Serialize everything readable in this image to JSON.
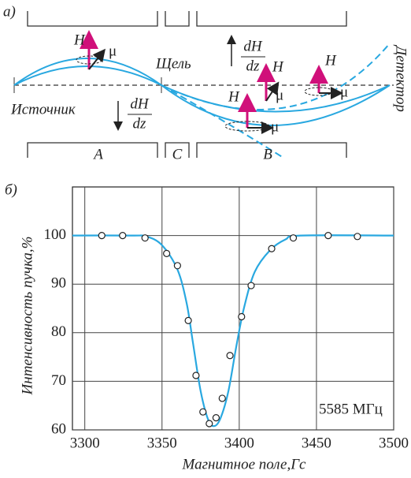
{
  "diagram": {
    "panel_label": "а)",
    "source": "Источник",
    "slit": "Щель",
    "detector": "Детектор",
    "magnets": [
      "A",
      "C",
      "B"
    ],
    "gradient_down": {
      "num": "dH",
      "den": "dz"
    },
    "gradient_up": {
      "num": "dH",
      "den": "dz"
    },
    "vectors": [
      {
        "field": "H",
        "moment": "μ"
      },
      {
        "field": "H",
        "moment": "μ"
      },
      {
        "field": "H",
        "moment": "μ"
      },
      {
        "field": "H",
        "moment": "μ"
      }
    ]
  },
  "chart_data": {
    "type": "line",
    "panel_label": "б)",
    "xlabel": "Магнитное поле,Гс",
    "ylabel": "Интенсивность пучка,%",
    "annotation": "5585 МГц",
    "xlim": [
      3292,
      3500
    ],
    "ylim": [
      60,
      110
    ],
    "xticks": [
      3300,
      3350,
      3400,
      3450,
      3500
    ],
    "yticks": [
      60,
      70,
      80,
      90,
      100
    ],
    "grid": true,
    "series": [
      {
        "style": "line",
        "color": "#29a8e0",
        "x": [
          3292,
          3330,
          3340,
          3350,
          3360,
          3366,
          3370,
          3375,
          3380,
          3384,
          3388,
          3393,
          3398,
          3403,
          3410,
          3420,
          3430,
          3440,
          3500
        ],
        "values": [
          100,
          100,
          99.8,
          98,
          93,
          86,
          78,
          68,
          62,
          60.8,
          62.5,
          68,
          77,
          85,
          92.5,
          97,
          99.2,
          100,
          100
        ]
      },
      {
        "style": "markers",
        "color": "#ffffff",
        "x": [
          3311,
          3324.5,
          3339,
          3353,
          3360,
          3367,
          3372,
          3376.5,
          3380.6,
          3385,
          3389,
          3394,
          3401.5,
          3407.7,
          3421,
          3435,
          3457.6,
          3476.5
        ],
        "values": [
          100,
          100,
          99.5,
          96.3,
          93.8,
          82.5,
          71.2,
          63.7,
          61.3,
          62.5,
          66.5,
          75.3,
          83.3,
          89.7,
          97.3,
          99.5,
          100,
          99.8
        ]
      }
    ]
  }
}
